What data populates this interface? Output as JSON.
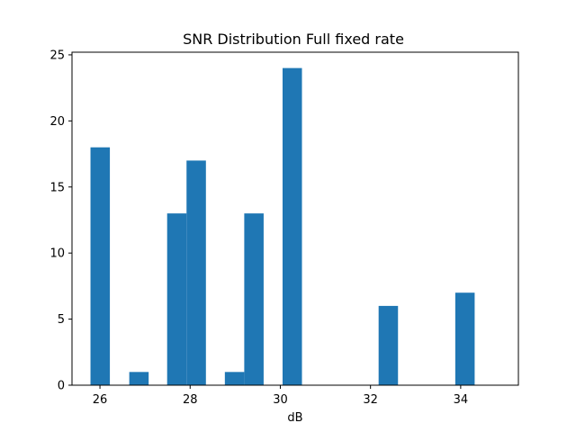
{
  "chart_data": {
    "type": "bar",
    "title": "SNR Distribution Full fixed rate",
    "xlabel": "dB",
    "ylabel": "",
    "xlim": [
      25.38,
      35.28
    ],
    "ylim": [
      0,
      25.2
    ],
    "xticks": [
      26,
      28,
      30,
      32,
      34
    ],
    "yticks": [
      0,
      5,
      10,
      15,
      20,
      25
    ],
    "bin_width": 0.43,
    "bins": [
      {
        "left": 25.79,
        "right": 26.22,
        "count": 18
      },
      {
        "left": 26.65,
        "right": 27.08,
        "count": 1
      },
      {
        "left": 27.49,
        "right": 27.92,
        "count": 13
      },
      {
        "left": 27.92,
        "right": 28.35,
        "count": 17
      },
      {
        "left": 28.77,
        "right": 29.2,
        "count": 1
      },
      {
        "left": 29.2,
        "right": 29.63,
        "count": 13
      },
      {
        "left": 30.05,
        "right": 30.48,
        "count": 24
      },
      {
        "left": 32.18,
        "right": 32.61,
        "count": 6
      },
      {
        "left": 33.88,
        "right": 34.31,
        "count": 7
      }
    ],
    "bar_color": "#1f77b4",
    "grid": false,
    "legend": false
  }
}
